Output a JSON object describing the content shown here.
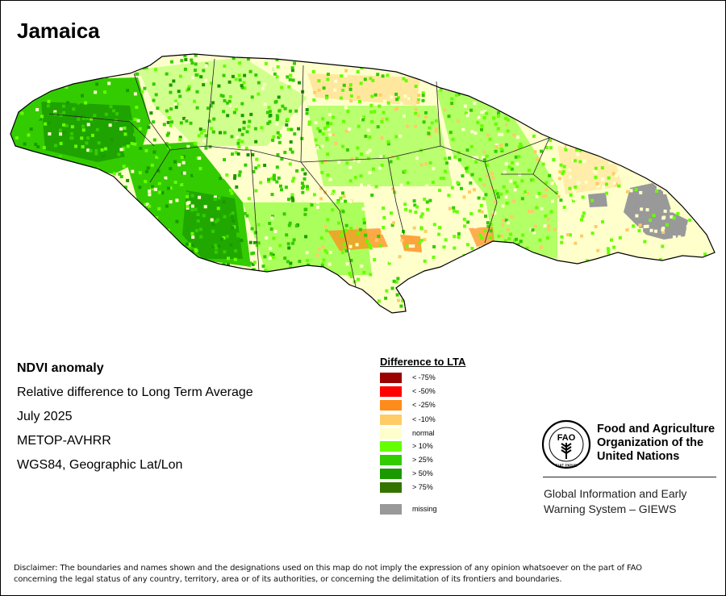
{
  "title": "Jamaica",
  "info": {
    "heading": "NDVI anomaly",
    "description": "Relative difference to Long Term Average",
    "date": "July 2025",
    "sensor": "METOP-AVHRR",
    "projection": "WGS84, Geographic Lat/Lon"
  },
  "legend": {
    "title": "Difference to LTA",
    "items": [
      {
        "label": "< -75%",
        "color": "#990000"
      },
      {
        "label": "< -50%",
        "color": "#ff0000"
      },
      {
        "label": "< -25%",
        "color": "#ff8c1a"
      },
      {
        "label": "< -10%",
        "color": "#ffcc66"
      },
      {
        "label": "normal",
        "color": "#ffffcc"
      },
      {
        "label": "> 10%",
        "color": "#66ff00"
      },
      {
        "label": "> 25%",
        "color": "#33cc00"
      },
      {
        "label": "> 50%",
        "color": "#1a9900"
      },
      {
        "label": "> 75%",
        "color": "#337300"
      }
    ],
    "missing": {
      "label": "missing",
      "color": "#999999"
    }
  },
  "org": {
    "line1": "Food and Agriculture",
    "line2": "Organization of the",
    "line3": "United Nations",
    "system_line1": "Global Information and Early",
    "system_line2": "Warning System – GIEWS",
    "logo_letters": "FAO",
    "logo_motto": "FIAT PANIS"
  },
  "disclaimer": {
    "line1": "Disclaimer: The boundaries and names shown and the designations used on this map do not imply the expression of any opinion whatsoever on the part of FAO",
    "line2": "concerning the legal status of any country, territory, area or of its authorities, or concerning the delimitation of its frontiers and boundaries."
  }
}
